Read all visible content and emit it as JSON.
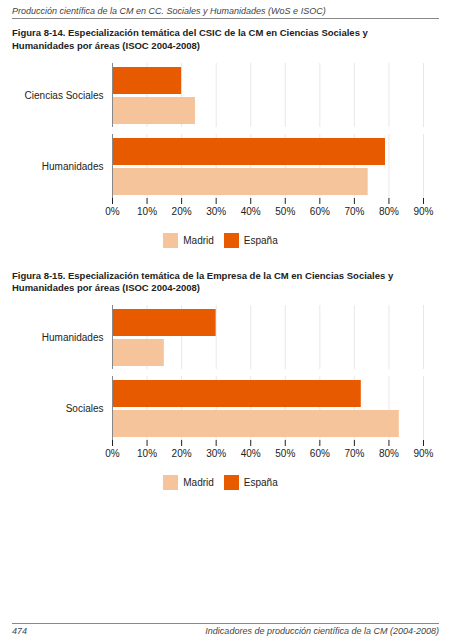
{
  "chart_data": [
    {
      "type": "bar",
      "orientation": "horizontal",
      "title": "Figura 8-14. Especialización temática del CSIC de la CM en Ciencias Sociales y\nHumanidades por áreas (ISOC 2004-2008)",
      "annotations": [
        "Producción científica de la CM en CC. Sociales y Humanidades (WoS e ISOC)"
      ],
      "categories": [
        "Humanidades",
        "Ciencias Sociales"
      ],
      "series": [
        {
          "name": "Madrid",
          "color": "#F5C49A",
          "values": [
            0.74,
            0.24
          ]
        },
        {
          "name": "España",
          "color": "#E85A00",
          "values": [
            0.79,
            0.2
          ]
        }
      ],
      "xlim": [
        0,
        0.9
      ],
      "xticks": [
        {
          "value": 0,
          "label": "0%"
        },
        {
          "value": 0.1,
          "label": "10%"
        },
        {
          "value": 0.2,
          "label": "20%"
        },
        {
          "value": 0.3,
          "label": "30%"
        },
        {
          "value": 0.4,
          "label": "40%"
        },
        {
          "value": 0.5,
          "label": "50%"
        },
        {
          "value": 0.6,
          "label": "60%"
        },
        {
          "value": 0.7,
          "label": "70%"
        },
        {
          "value": 0.8,
          "label": "80%"
        },
        {
          "value": 0.9,
          "label": "90%"
        }
      ],
      "grid": true,
      "legend": "bottom"
    },
    {
      "type": "bar",
      "orientation": "horizontal",
      "title": "Figura 8-15. Especialización temática de la Empresa de la CM en Ciencias Sociales y\nHumanidades por áreas (ISOC 2004-2008)",
      "annotations": [
        "474",
        "Indicadores de producción científica de la CM (2004-2008)"
      ],
      "categories": [
        "Sociales",
        "Humanidades"
      ],
      "series": [
        {
          "name": "Madrid",
          "color": "#F5C49A",
          "values": [
            0.83,
            0.15
          ]
        },
        {
          "name": "España",
          "color": "#E85A00",
          "values": [
            0.72,
            0.3
          ]
        }
      ],
      "xlim": [
        0,
        0.9
      ],
      "xticks": [
        {
          "value": 0,
          "label": "0%"
        },
        {
          "value": 0.1,
          "label": "10%"
        },
        {
          "value": 0.2,
          "label": "20%"
        },
        {
          "value": 0.3,
          "label": "30%"
        },
        {
          "value": 0.4,
          "label": "40%"
        },
        {
          "value": 0.5,
          "label": "50%"
        },
        {
          "value": 0.6,
          "label": "60%"
        },
        {
          "value": 0.7,
          "label": "70%"
        },
        {
          "value": 0.8,
          "label": "80%"
        },
        {
          "value": 0.9,
          "label": "90%"
        }
      ],
      "grid": true,
      "legend": "bottom"
    }
  ]
}
